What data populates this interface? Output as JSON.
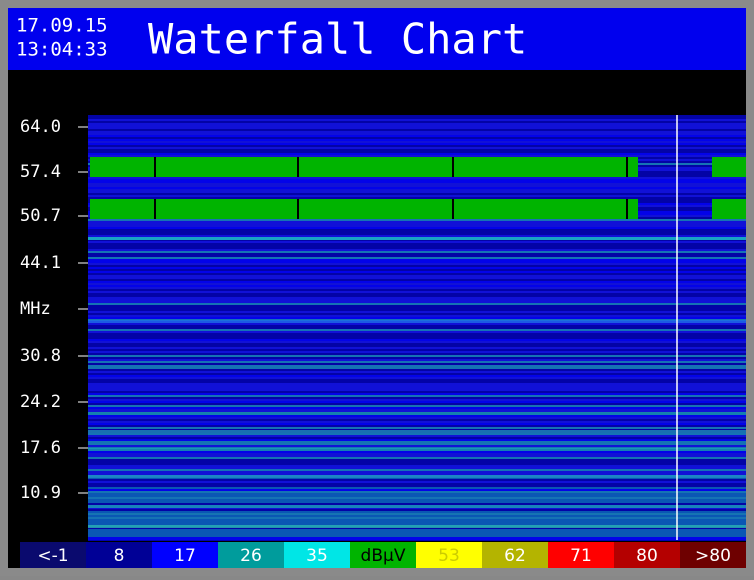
{
  "header": {
    "date": "17.09.15",
    "time": "13:04:33",
    "title": "Waterfall Chart"
  },
  "y_axis_labels": [
    "64.0",
    "57.4",
    "50.7",
    "44.1",
    "MHz",
    "30.8",
    "24.2",
    "17.6",
    "10.9"
  ],
  "legend": [
    {
      "label": "<-1",
      "color": "#0a0a6e"
    },
    {
      "label": "8",
      "color": "#000096"
    },
    {
      "label": "17",
      "color": "#0000ff"
    },
    {
      "label": "26",
      "color": "#009c9c"
    },
    {
      "label": "35",
      "color": "#00e6e6"
    },
    {
      "label": "dBµV",
      "color": "#00b400"
    },
    {
      "label": "53",
      "color": "#ffff00"
    },
    {
      "label": "62",
      "color": "#b4b400"
    },
    {
      "label": "71",
      "color": "#ff0000"
    },
    {
      "label": "80",
      "color": "#b40000"
    },
    {
      "label": ">80",
      "color": "#6e0000"
    }
  ]
}
